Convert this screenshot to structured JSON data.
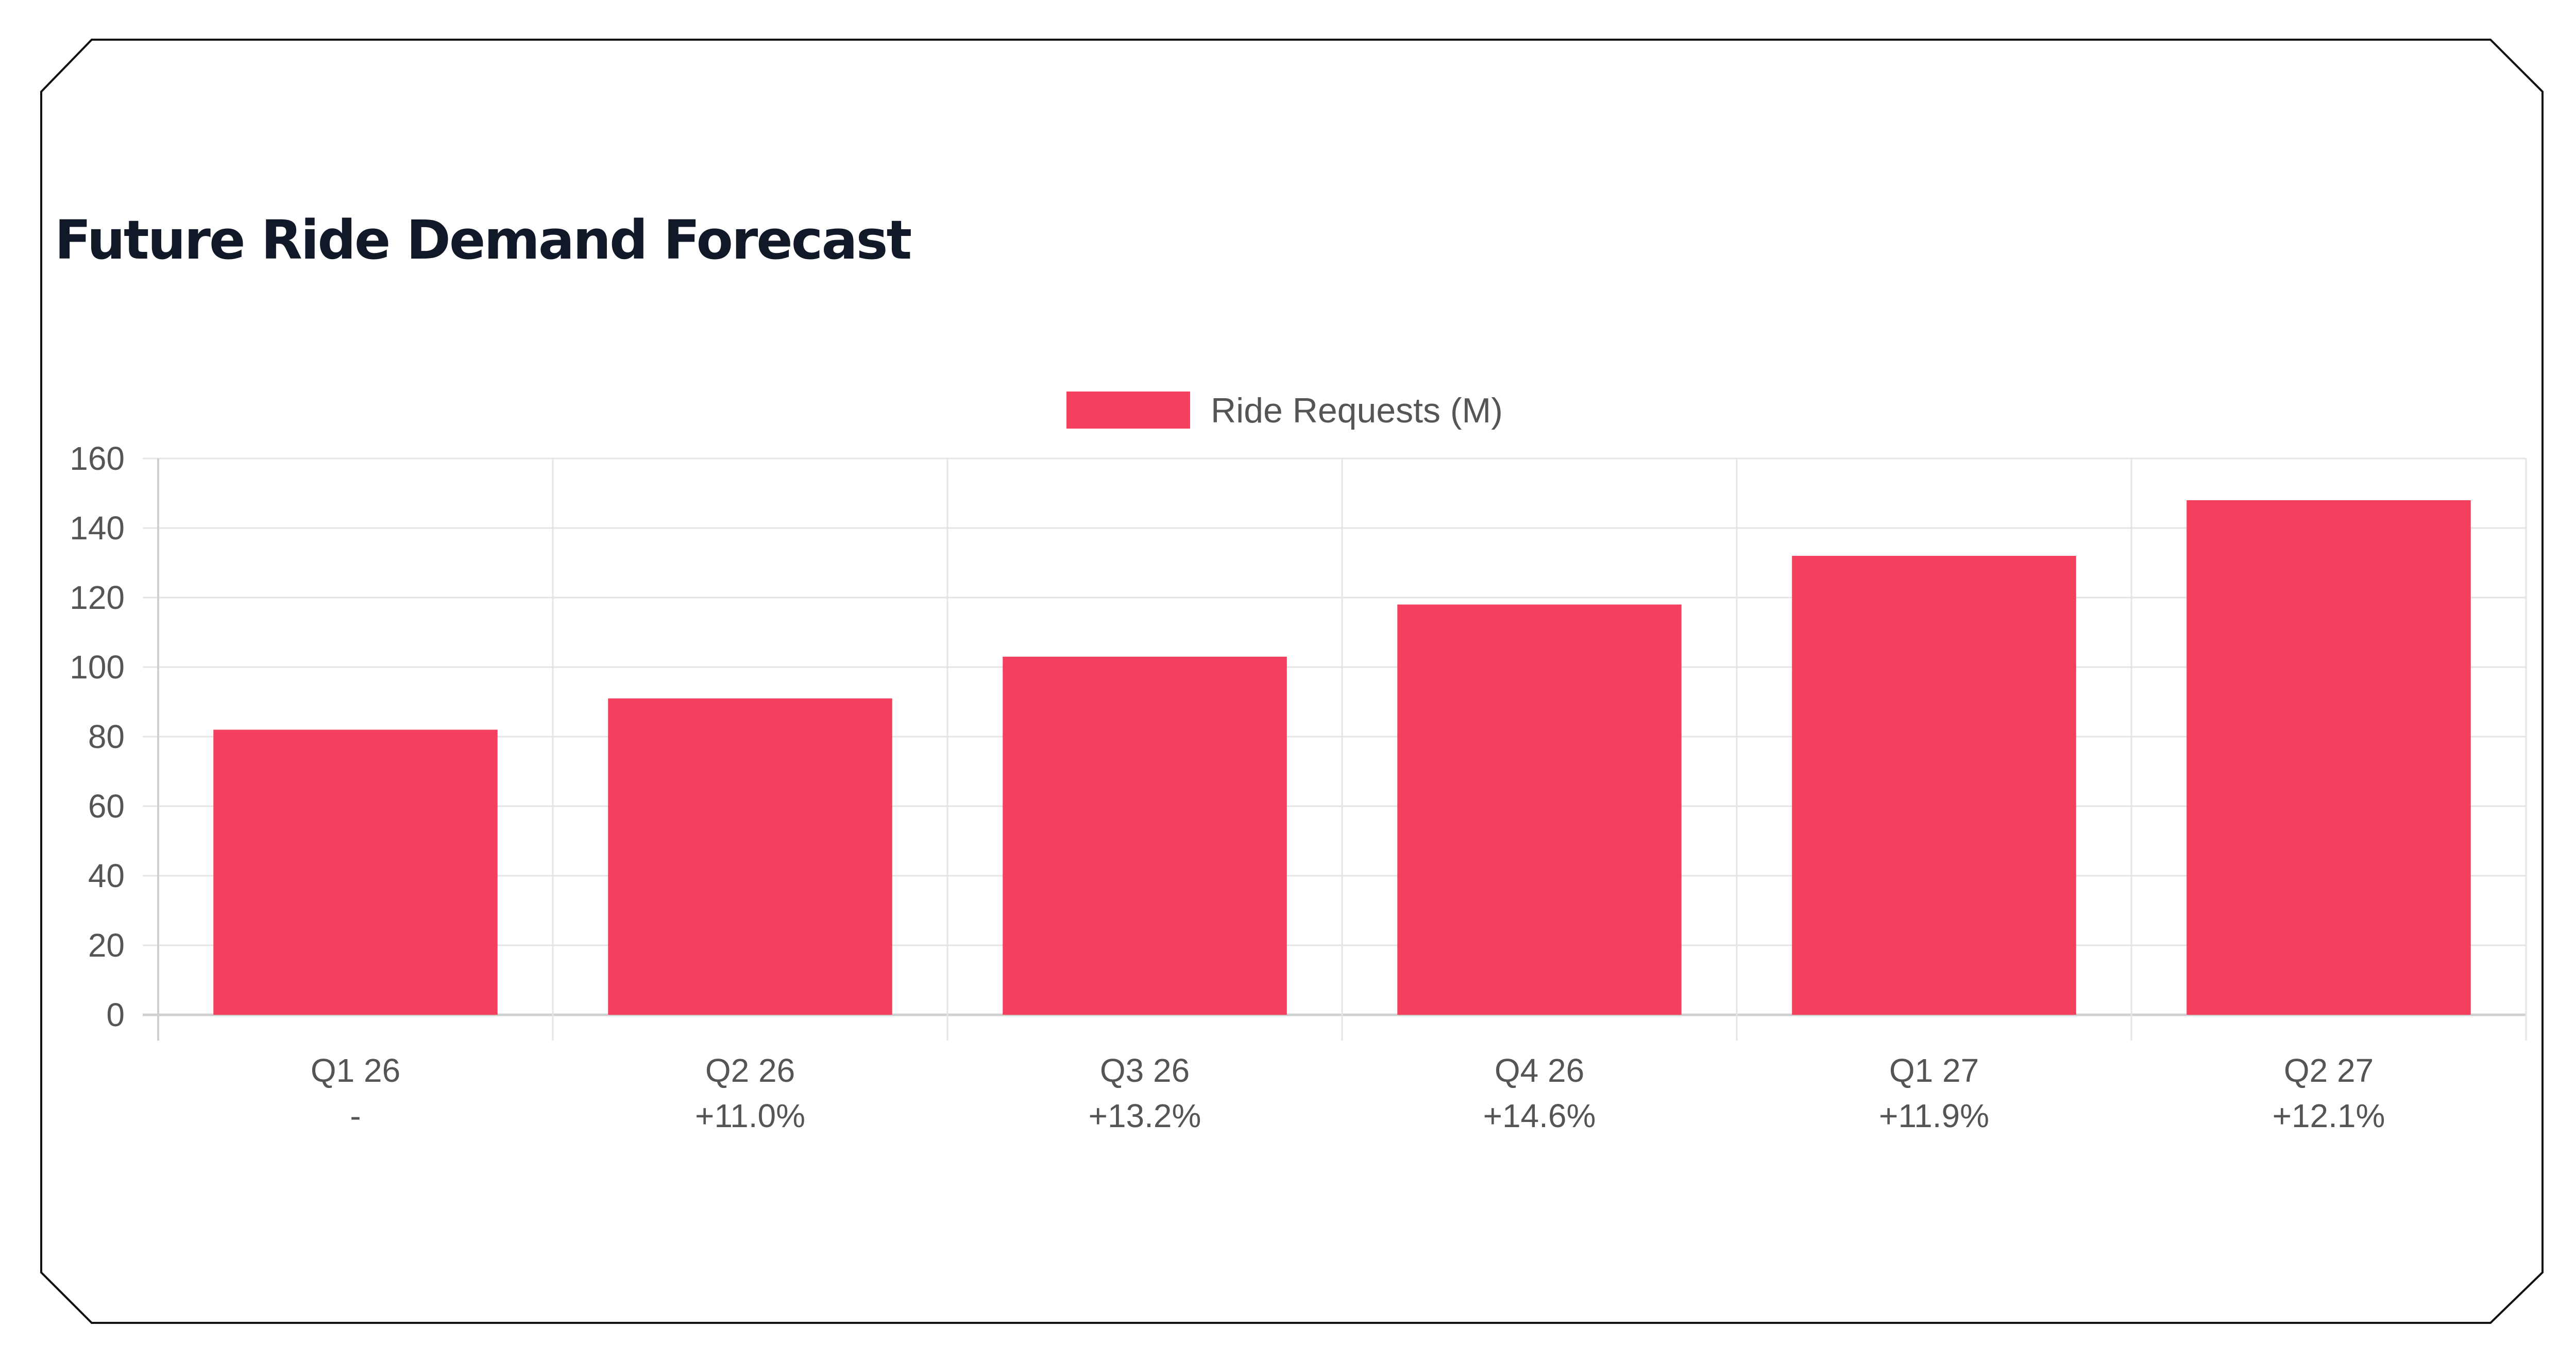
{
  "chart_data": {
    "type": "bar",
    "title": "Future Ride Demand Forecast",
    "categories": [
      "Q1 26",
      "Q2 26",
      "Q3 26",
      "Q4 26",
      "Q1 27",
      "Q2 27"
    ],
    "category_sublabels": [
      "-",
      "+11.0%",
      "+13.2%",
      "+14.6%",
      "+11.9%",
      "+12.1%"
    ],
    "series": [
      {
        "name": "Ride Requests (M)",
        "color": "#f43f5e",
        "values": [
          82,
          91,
          103,
          118,
          132,
          148
        ]
      }
    ],
    "ylim": [
      0,
      160
    ],
    "yticks": [
      "0",
      "20",
      "40",
      "60",
      "80",
      "100",
      "120",
      "140",
      "160"
    ],
    "grid": true,
    "legend": "top-center"
  }
}
